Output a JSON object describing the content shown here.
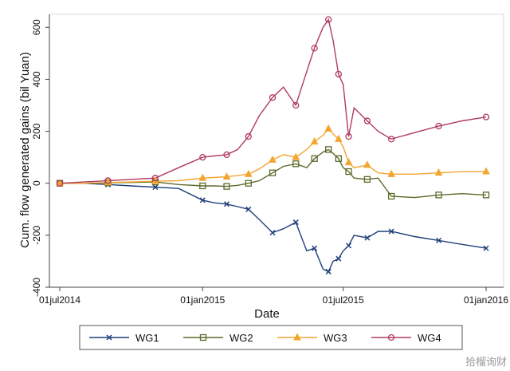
{
  "chart_data": {
    "type": "line",
    "title": "",
    "xlabel": "Date",
    "ylabel": "Cum. flow generated gains (bil Yuan)",
    "x_ticks": [
      "01jul2014",
      "01jan2015",
      "01jul2015",
      "01jan2016"
    ],
    "y_ticks": [
      "-400",
      "-200",
      "0",
      "200",
      "400",
      "600"
    ],
    "ylim": [
      -400,
      650
    ],
    "grid": false,
    "legend_position": "bottom",
    "x": [
      "2014-07-01",
      "2014-08-01",
      "2014-09-01",
      "2014-10-01",
      "2014-11-01",
      "2014-12-01",
      "2015-01-01",
      "2015-01-15",
      "2015-02-01",
      "2015-02-15",
      "2015-03-01",
      "2015-03-15",
      "2015-04-01",
      "2015-04-15",
      "2015-05-01",
      "2015-05-15",
      "2015-05-25",
      "2015-06-05",
      "2015-06-12",
      "2015-06-18",
      "2015-06-25",
      "2015-07-01",
      "2015-07-08",
      "2015-07-15",
      "2015-08-01",
      "2015-08-15",
      "2015-09-01",
      "2015-10-01",
      "2015-11-01",
      "2015-12-01",
      "2016-01-01"
    ],
    "series": [
      {
        "name": "WG1",
        "color": "#1f3f7a",
        "marker": "x",
        "values": [
          0,
          0,
          -5,
          -10,
          -15,
          -20,
          -65,
          -75,
          -80,
          -90,
          -100,
          -140,
          -190,
          -175,
          -150,
          -260,
          -250,
          -330,
          -340,
          -300,
          -290,
          -260,
          -240,
          -200,
          -210,
          -185,
          -185,
          -205,
          -220,
          -235,
          -250
        ]
      },
      {
        "name": "WG2",
        "color": "#5a6b2a",
        "marker": "square",
        "values": [
          0,
          0,
          2,
          3,
          5,
          -5,
          -10,
          -10,
          -12,
          -8,
          0,
          10,
          40,
          65,
          75,
          60,
          95,
          120,
          130,
          115,
          95,
          60,
          45,
          20,
          15,
          20,
          -50,
          -55,
          -45,
          -40,
          -45
        ]
      },
      {
        "name": "WG3",
        "color": "#f3a530",
        "marker": "triangle",
        "values": [
          0,
          0,
          3,
          5,
          8,
          10,
          20,
          22,
          25,
          30,
          35,
          55,
          90,
          110,
          100,
          130,
          160,
          185,
          210,
          190,
          170,
          140,
          80,
          60,
          70,
          40,
          35,
          35,
          40,
          45,
          45
        ]
      },
      {
        "name": "WG4",
        "color": "#b03a62",
        "marker": "circle",
        "values": [
          0,
          5,
          10,
          15,
          20,
          60,
          100,
          105,
          110,
          130,
          180,
          260,
          330,
          370,
          300,
          430,
          520,
          600,
          630,
          550,
          420,
          380,
          180,
          290,
          240,
          200,
          170,
          195,
          220,
          240,
          255
        ]
      }
    ]
  },
  "watermark": "拾榴询财"
}
